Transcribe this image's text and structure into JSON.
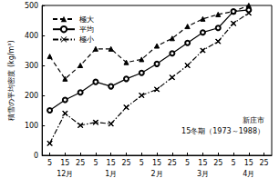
{
  "chart_data": {
    "type": "line",
    "y_label": "積雪の平均密度 (kg/m³)",
    "categories": [
      "5",
      "15",
      "25",
      "5",
      "15",
      "25",
      "5",
      "15",
      "25",
      "5",
      "15",
      "25",
      "5",
      "15",
      "25"
    ],
    "months": [
      "12月",
      "1月",
      "2月",
      "3月",
      "4月"
    ],
    "annotations": [
      "新庄市",
      "15冬期（1973～1988）"
    ],
    "series": [
      {
        "name": "極大",
        "color": "#000000",
        "marker": "triangle",
        "line_style": "dashed",
        "values": [
          330,
          255,
          300,
          355,
          355,
          310,
          320,
          365,
          390,
          430,
          455,
          470,
          480,
          500,
          null
        ]
      },
      {
        "name": "平均",
        "color": "#000000",
        "marker": "circle",
        "line_style": "solid",
        "values": [
          150,
          185,
          210,
          245,
          230,
          255,
          275,
          305,
          340,
          375,
          410,
          425,
          480,
          485,
          null
        ]
      },
      {
        "name": "極小",
        "color": "#000000",
        "marker": "x",
        "line_style": "dashdot",
        "values": [
          40,
          140,
          100,
          110,
          105,
          160,
          200,
          220,
          260,
          300,
          350,
          380,
          440,
          475,
          null
        ]
      }
    ],
    "ylim": [
      0,
      500
    ],
    "yticks": [
      0,
      100,
      200,
      300,
      400,
      500
    ],
    "legend": "top-left",
    "grid": false
  }
}
